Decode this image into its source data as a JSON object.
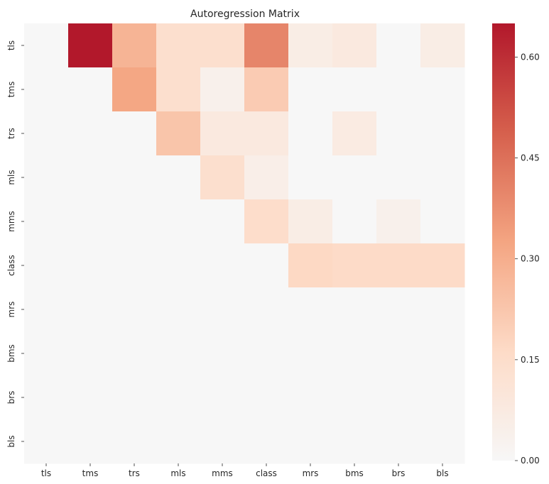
{
  "chart_data": {
    "type": "heatmap",
    "title": "Autoregression Matrix",
    "xlabel": "",
    "ylabel": "",
    "x_labels": [
      "tls",
      "tms",
      "trs",
      "mls",
      "mms",
      "class",
      "mrs",
      "bms",
      "brs",
      "bls"
    ],
    "y_labels": [
      "tls",
      "tms",
      "trs",
      "mls",
      "mms",
      "class",
      "mrs",
      "bms",
      "brs",
      "bls"
    ],
    "values": [
      [
        0.0,
        0.65,
        0.28,
        0.14,
        0.14,
        0.4,
        0.06,
        0.08,
        0.0,
        0.06
      ],
      [
        0.0,
        0.0,
        0.32,
        0.14,
        0.04,
        0.21,
        0.0,
        0.0,
        0.0,
        0.0
      ],
      [
        0.0,
        0.0,
        0.0,
        0.23,
        0.08,
        0.08,
        0.0,
        0.07,
        0.0,
        0.0
      ],
      [
        0.0,
        0.0,
        0.0,
        0.0,
        0.14,
        0.05,
        0.0,
        0.0,
        0.0,
        0.0
      ],
      [
        0.0,
        0.0,
        0.0,
        0.0,
        0.0,
        0.15,
        0.06,
        0.0,
        0.04,
        0.0
      ],
      [
        0.0,
        0.0,
        0.0,
        0.0,
        0.0,
        0.0,
        0.17,
        0.16,
        0.16,
        0.16
      ],
      [
        0.0,
        0.0,
        0.0,
        0.0,
        0.0,
        0.0,
        0.0,
        0.0,
        0.0,
        0.0
      ],
      [
        0.0,
        0.0,
        0.0,
        0.0,
        0.0,
        0.0,
        0.0,
        0.0,
        0.0,
        0.0
      ],
      [
        0.0,
        0.0,
        0.0,
        0.0,
        0.0,
        0.0,
        0.0,
        0.0,
        0.0,
        0.0
      ],
      [
        0.0,
        0.0,
        0.0,
        0.0,
        0.0,
        0.0,
        0.0,
        0.0,
        0.0,
        0.0
      ]
    ],
    "colormap": "RdBu_r (white at 0 to dark red at max)",
    "colorbar": {
      "range": [
        0.0,
        0.65
      ],
      "ticks": [
        0.0,
        0.15,
        0.3,
        0.45,
        0.6
      ],
      "tick_labels": [
        "0.00",
        "0.15",
        "0.30",
        "0.45",
        "0.60"
      ]
    },
    "colors": {
      "zero": "#f5f5f5",
      "max": "#67001f"
    },
    "grid": false
  }
}
